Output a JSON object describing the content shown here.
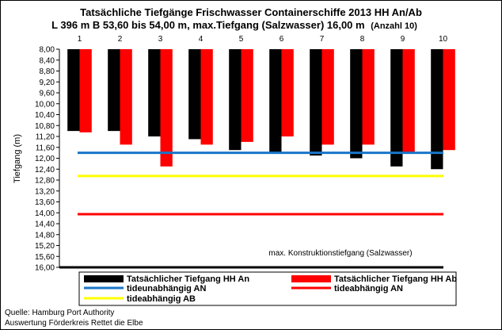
{
  "chart_data": {
    "type": "bar",
    "title": "Tatsächliche Tiefgänge Frischwasser Containerschiffe  2013 HH An/Ab",
    "subtitle": "L 396 m B 53,60 bis 54,00 m, max.Tiefgang (Salzwasser) 16,00 m",
    "subtitle_note": "(Anzahl 10)",
    "ylabel": "Tiefgang (m)",
    "ylim": [
      8.0,
      16.0
    ],
    "y_inverted": true,
    "y_ticks": [
      "8,00",
      "8,40",
      "8,80",
      "9,20",
      "9,60",
      "10,00",
      "10,40",
      "10,80",
      "11,20",
      "11,60",
      "12,00",
      "12,40",
      "12,80",
      "13,20",
      "13,60",
      "14,00",
      "14,40",
      "14,80",
      "15,20",
      "15,60",
      "16,00"
    ],
    "categories": [
      "1",
      "2",
      "3",
      "4",
      "5",
      "6",
      "7",
      "8",
      "9",
      "10"
    ],
    "series": [
      {
        "name": "Tatsächlicher Tiefgang HH An",
        "color": "#000000",
        "values": [
          11.0,
          11.0,
          11.2,
          11.3,
          11.7,
          11.8,
          11.9,
          12.0,
          12.3,
          12.4
        ]
      },
      {
        "name": "Tatsächlicher Tiefgang HH Ab",
        "color": "#ff0000",
        "values": [
          11.05,
          11.5,
          12.3,
          11.5,
          11.4,
          11.2,
          11.5,
          11.5,
          11.8,
          11.7
        ]
      }
    ],
    "reference_lines": [
      {
        "name": "tideunabhängig AN",
        "color": "#1a75c8",
        "value": 11.8
      },
      {
        "name": "tideabhängig AN",
        "color": "#ff0000",
        "value": 14.05
      },
      {
        "name": "tideabhängig AB",
        "color": "#ffff00",
        "value": 12.65
      },
      {
        "name": "max. Konstruktionstiefgang (Salzwasser)",
        "color": "#000000",
        "value": 16.0
      }
    ],
    "annotation": "max. Konstruktionstiefgang (Salzwasser)",
    "grid": false,
    "legend_placement": "bottom"
  },
  "footer": {
    "source": "Quelle: Hamburg Port Authority",
    "analysis": "Auswertung Förderkreis Rettet die Elbe"
  }
}
